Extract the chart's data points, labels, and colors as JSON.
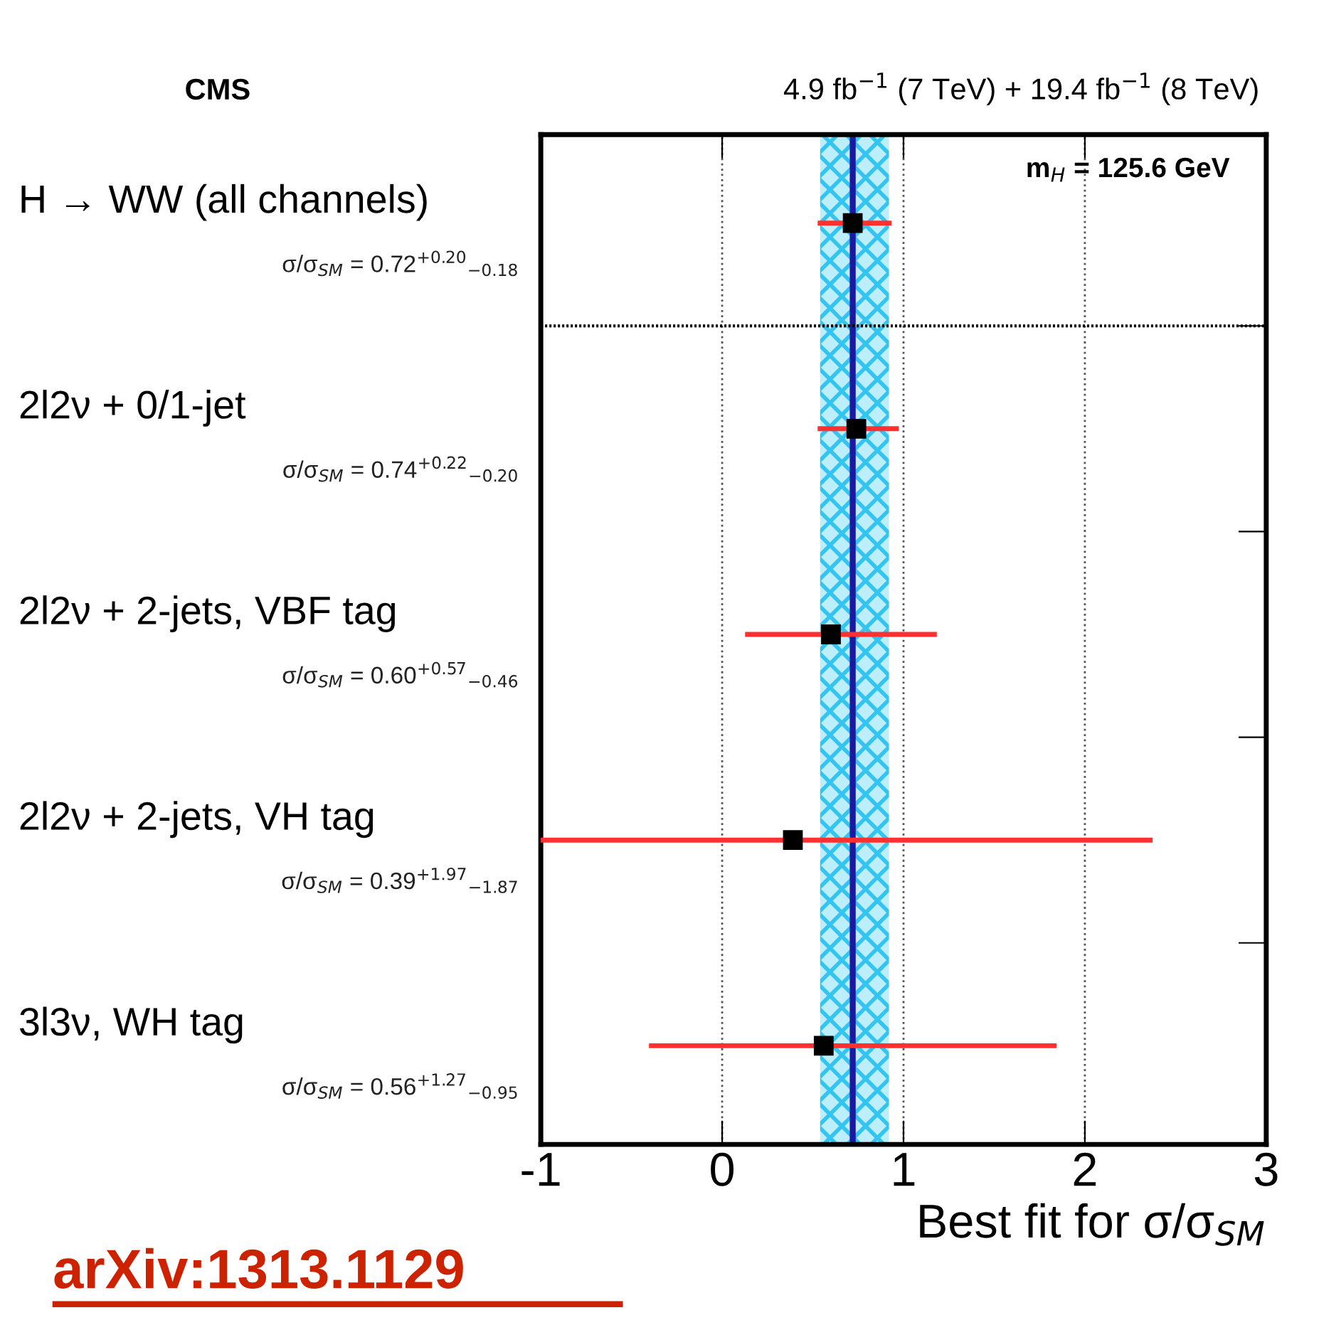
{
  "chart_data": {
    "type": "scatter",
    "orientation": "horizontal",
    "title": "CMS",
    "subtitle": "4.9 fb$^{−1}$ (7 TeV) + 19.4 fb$^{−1}$ (8 TeV)",
    "xlabel": "Best fit for σ/σ$_{SM}$",
    "categories": [
      "H → WW (all channels)",
      "2l2ν + 0/1-jet",
      "2l2ν + 2-jets, VBF tag",
      "2l2ν + 2-jets, VH tag",
      "3l3ν, WH tag"
    ],
    "series": [
      {
        "color": "#000000",
        "values": [
          0.72,
          0.74,
          0.6,
          0.39,
          0.56
        ],
        "errors": [
          [
            0.54,
            0.92
          ],
          [
            0.54,
            0.96
          ],
          [
            0.14,
            1.17
          ],
          [
            -1,
            2.36
          ],
          [
            -0.39,
            1.83
          ]
        ],
        "value_labels": [
          "σ/σ$_{SM}$ = 0.72$^{+0.20}$$_{−0.18}$",
          "σ/σ$_{SM}$ = 0.74$^{+0.22}$$_{−0.20}$",
          "σ/σ$_{SM}$ = 0.60$^{+0.57}$$_{−0.46}$",
          "σ/σ$_{SM}$ = 0.39$^{+1.97}$$_{−1.87}$",
          "σ/σ$_{SM}$ = 0.56$^{+1.27}$$_{−0.95}$"
        ]
      }
    ],
    "marker": "square",
    "xlim": [
      -1,
      3
    ],
    "xticks": [
      -1,
      0,
      1,
      2,
      3
    ],
    "grid": "x",
    "bands": [
      {
        "axis": "x",
        "from": 0.54,
        "to": 0.92,
        "color": "#33c4f0"
      }
    ],
    "ref_lines": [
      {
        "axis": "x",
        "value": 0.72,
        "color": "#1a1aa0",
        "line_style": "solid"
      }
    ],
    "annotations": [
      "m$_{H}$ = 125.6 GeV",
      "arXiv:1313.1129"
    ]
  }
}
